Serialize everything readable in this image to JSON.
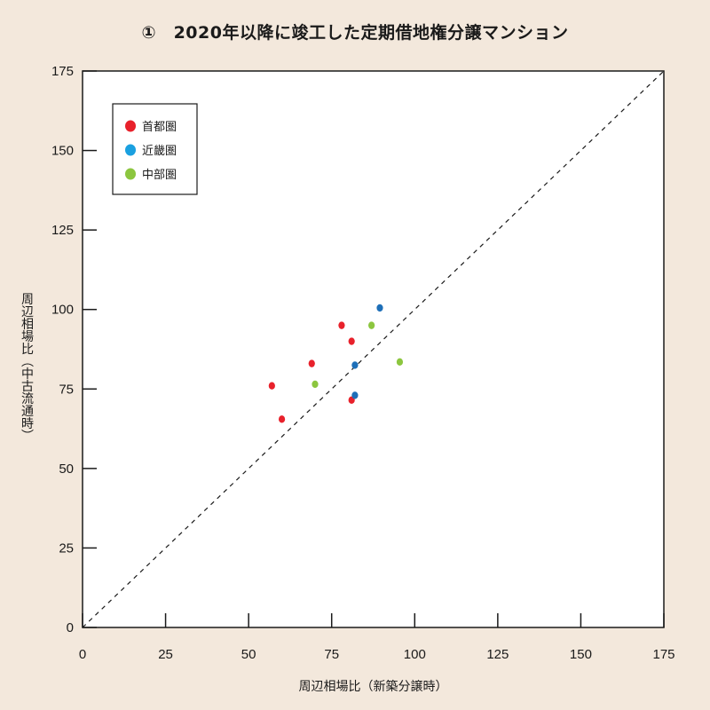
{
  "chart_data": {
    "type": "scatter",
    "title": "①　2020年以降に竣工した定期借地権分譲マンション",
    "xlabel": "周辺相場比（新築分譲時）",
    "ylabel": "周辺相場比（中古流通時）",
    "xlim": [
      0,
      175
    ],
    "ylim": [
      0,
      175
    ],
    "xticks": [
      0,
      25,
      50,
      75,
      100,
      125,
      150,
      175
    ],
    "yticks": [
      0,
      25,
      50,
      75,
      100,
      125,
      150,
      175
    ],
    "grid": false,
    "legend_position": "top-left",
    "reference_line": "y=x dashed",
    "series": [
      {
        "name": "首都圏",
        "color": "#e8212b",
        "points": [
          {
            "x": 57,
            "y": 76
          },
          {
            "x": 60,
            "y": 65.5
          },
          {
            "x": 69,
            "y": 83
          },
          {
            "x": 78,
            "y": 95
          },
          {
            "x": 81,
            "y": 90
          },
          {
            "x": 81,
            "y": 71.5
          }
        ]
      },
      {
        "name": "近畿圏",
        "color": "#1e6fb8",
        "legend_color": "#1aa0e0",
        "points": [
          {
            "x": 89.5,
            "y": 100.5
          },
          {
            "x": 82,
            "y": 82.5
          },
          {
            "x": 82,
            "y": 73
          }
        ]
      },
      {
        "name": "中部圏",
        "color": "#8cc63f",
        "points": [
          {
            "x": 70,
            "y": 76.5
          },
          {
            "x": 87,
            "y": 95
          },
          {
            "x": 95.5,
            "y": 83.5
          }
        ]
      }
    ]
  }
}
